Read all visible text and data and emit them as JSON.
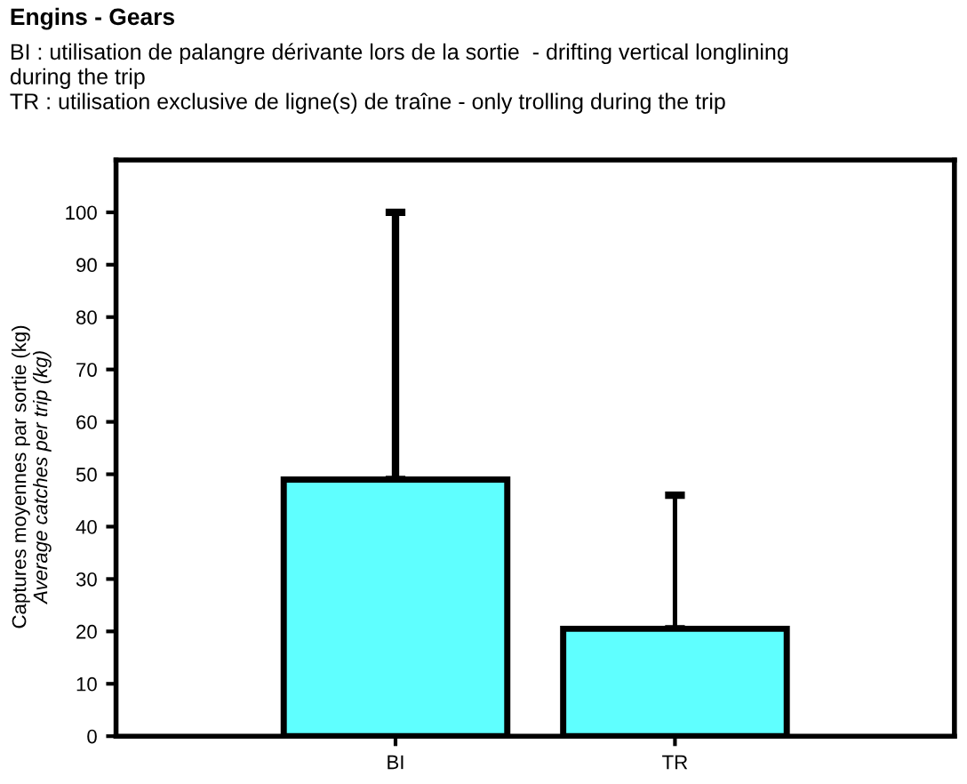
{
  "chart_data": {
    "type": "bar",
    "title": "Engins - Gears",
    "subtitle": "BI : utilisation de palangre dérivante lors de la sortie  - drifting vertical longlining\nduring the trip\nTR : utilisation exclusive de ligne(s) de traîne - only trolling during the trip",
    "ylabel": "Captures moyennes par sortie (kg)\nAverage catches per trip (kg)",
    "categories": [
      "BI",
      "TR"
    ],
    "values": [
      49,
      20.5
    ],
    "color": "#5fffff",
    "errors": [
      [
        49,
        100
      ],
      [
        20.5,
        46
      ]
    ],
    "ylim": [
      0,
      110
    ],
    "yticks": [
      0,
      10,
      20,
      30,
      40,
      50,
      60,
      70,
      80,
      90,
      100
    ],
    "grid": false
  }
}
